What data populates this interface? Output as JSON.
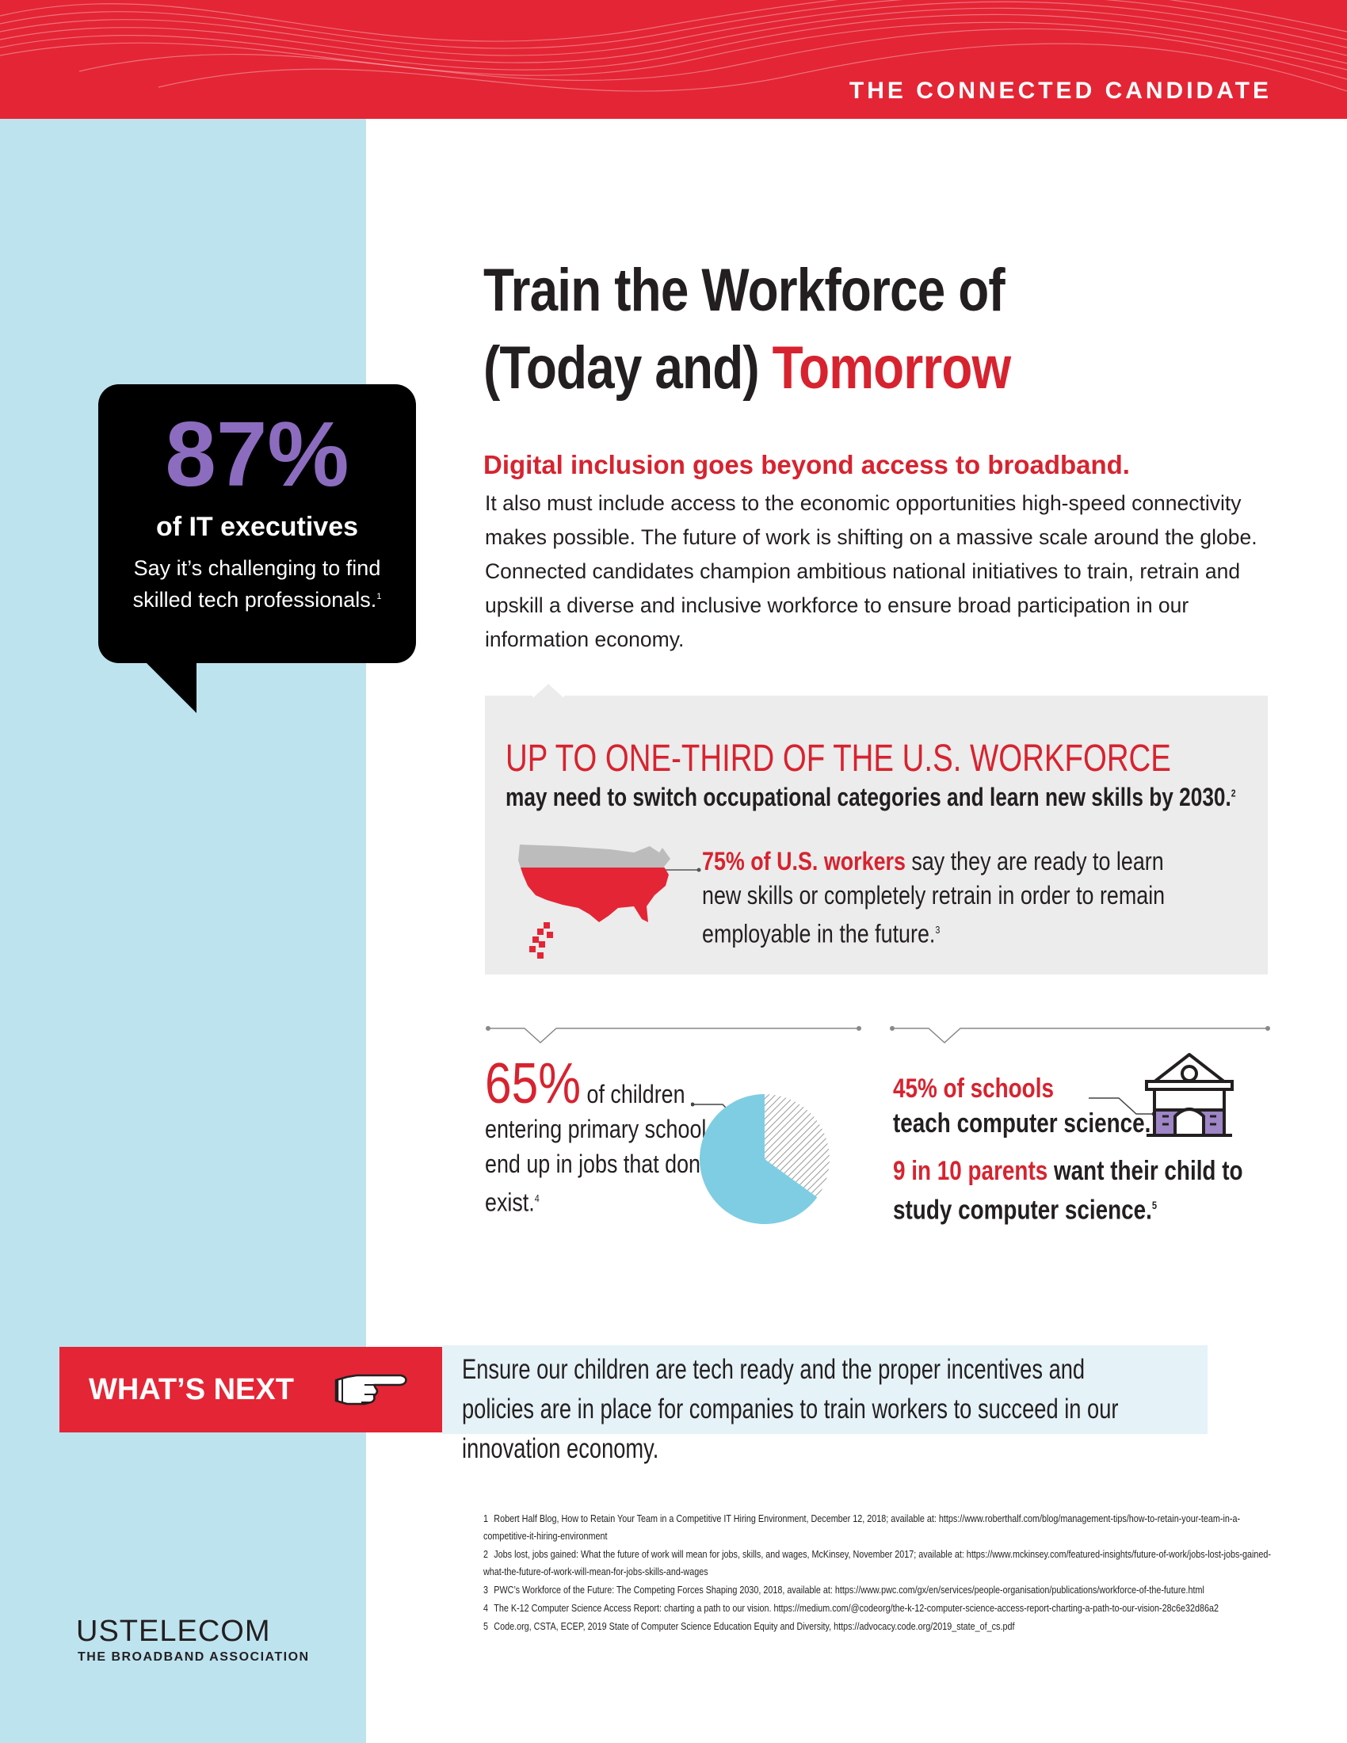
{
  "header": {
    "title": "THE CONNECTED CANDIDATE"
  },
  "callout": {
    "big_number": "87%",
    "subject": "of IT executives",
    "description": "Say it’s challenging to find skilled tech professionals.",
    "footnote_ref": "1"
  },
  "title": {
    "line1": "Train the Workforce of",
    "line2_plain": "(Today and) ",
    "line2_accent": "Tomorrow"
  },
  "intro": {
    "lead": "Digital inclusion goes beyond access to broadband.",
    "body": "It also must include access to the economic opportunities high-speed connectivity makes possible. The future of work is shifting on a massive scale around the globe. Connected candidates champion ambitious national initiatives to train, retrain and upskill a diverse and inclusive workforce to ensure broad participation in our information economy."
  },
  "workforce_box": {
    "headline": "UP TO ONE-THIRD OF THE U.S. WORKFORCE",
    "subline": "may need to switch occupational categories and learn new skills by 2030.",
    "subline_ref": "2",
    "stat_highlight": "75% of U.S. workers",
    "stat_rest": " say they are ready to learn new skills or completely retrain in order to remain employable in the future.",
    "stat_ref": "3",
    "map_filled_fraction": 0.75
  },
  "children_stat": {
    "big": "65%",
    "text1": " of children",
    "text2": "entering primary school will end up in jobs that don’t yet exist.",
    "ref": "4",
    "pie_fraction": 0.65
  },
  "schools_stat": {
    "line1_highlight": "45% of schools",
    "line1_rest": "teach computer science.",
    "line2_highlight": "9 in 10 parents",
    "line2_rest": " want their child to study computer science.",
    "ref": "5"
  },
  "whats_next": {
    "label": "WHAT’S NEXT",
    "text": "Ensure our children are tech ready and the proper incentives and policies are in place for companies to train workers to succeed in our innovation economy."
  },
  "logo": {
    "name": "USTELECOM",
    "tagline": "THE BROADBAND ASSOCIATION"
  },
  "footnotes": [
    {
      "num": "1",
      "text": "Robert Half Blog, How to Retain Your Team in a Competitive IT Hiring Environment, December 12, 2018; available at: https://www.roberthalf.com/blog/management-tips/how-to-retain-your-team-in-a-competitive-it-hiring-environment"
    },
    {
      "num": "2",
      "text": "Jobs lost, jobs gained: What the future of work will mean for jobs, skills, and wages, McKinsey, November 2017; available at: https://www.mckinsey.com/featured-insights/future-of-work/jobs-lost-jobs-gained-what-the-future-of-work-will-mean-for-jobs-skills-and-wages"
    },
    {
      "num": "3",
      "text": "PWC’s Workforce of the Future: The Competing Forces Shaping 2030, 2018, available at: https://www.pwc.com/gx/en/services/people-organisation/publications/workforce-of-the-future.html"
    },
    {
      "num": "4",
      "text": "The K-12 Computer Science Access Report: charting a path to our vision. https://medium.com/@codeorg/the-k-12-computer-science-access-report-charting-a-path-to-our-vision-28c6e32d86a2"
    },
    {
      "num": "5",
      "text": "Code.org, CSTA, ECEP, 2019 State of Computer Science Education Equity and Diversity, https://advocacy.code.org/2019_state_of_cs.pdf"
    }
  ],
  "colors": {
    "red": "#e42535",
    "accent_red": "#d7232f",
    "light_blue": "#bde3ef",
    "purple": "#8c6cbf",
    "pie_blue": "#7fcde3"
  }
}
